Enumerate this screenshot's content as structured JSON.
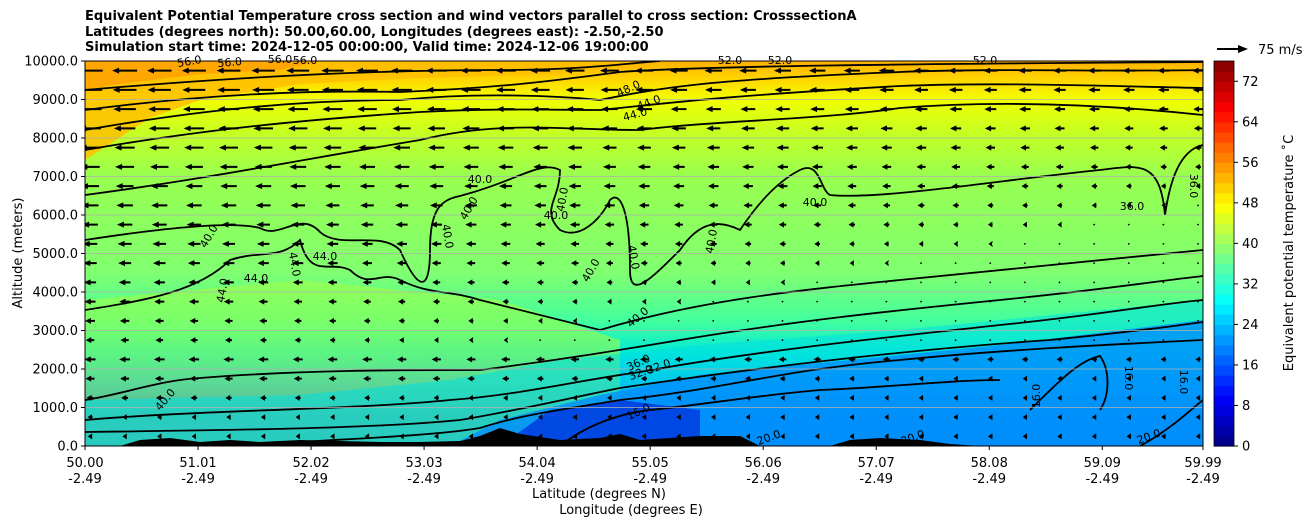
{
  "chart_data": {
    "type": "heatmap",
    "title_lines": [
      "Equivalent Potential Temperature cross section and wind vectors parallel to cross section: CrosssectionA",
      "Latitudes (degrees north): 50.00,60.00, Longitudes (degrees east): -2.50,-2.50",
      "Simulation start time: 2024-12-05 00:00:00, Valid time: 2024-12-06 19:00:00"
    ],
    "ylabel": "Altitude (meters)",
    "xlabel_lines": [
      "Latitude (degrees N)",
      "Longitude (degrees E)"
    ],
    "ylim": [
      0,
      10000
    ],
    "y_ticks": [
      "0.0",
      "1000.0",
      "2000.0",
      "3000.0",
      "4000.0",
      "5000.0",
      "6000.0",
      "7000.0",
      "8000.0",
      "9000.0",
      "10000.0"
    ],
    "x_ticks": [
      {
        "lat": "50.00",
        "lon": "-2.49"
      },
      {
        "lat": "51.01",
        "lon": "-2.49"
      },
      {
        "lat": "52.02",
        "lon": "-2.49"
      },
      {
        "lat": "53.03",
        "lon": "-2.49"
      },
      {
        "lat": "54.04",
        "lon": "-2.49"
      },
      {
        "lat": "55.05",
        "lon": "-2.49"
      },
      {
        "lat": "56.06",
        "lon": "-2.49"
      },
      {
        "lat": "57.07",
        "lon": "-2.49"
      },
      {
        "lat": "58.08",
        "lon": "-2.49"
      },
      {
        "lat": "59.09",
        "lon": "-2.49"
      },
      {
        "lat": "59.99",
        "lon": "-2.49"
      }
    ],
    "colorbar": {
      "label": "Equivalent potential temperature $^\\circ$C",
      "label_display": "Equivalent potential temperature ˚C",
      "ticks": [
        "0",
        "8",
        "16",
        "24",
        "32",
        "40",
        "48",
        "56",
        "64",
        "72"
      ],
      "range": [
        0,
        76
      ]
    },
    "quiver_key": "75 m/s",
    "contour_labels": [
      "56.0",
      "56.0",
      "56.0",
      "56.0",
      "48.0",
      "44.0",
      "44.0",
      "52.0",
      "52.0",
      "52.0",
      "40.0",
      "40.0",
      "40.0",
      "40.0",
      "40.0",
      "40.0",
      "40.0",
      "40.0",
      "40.0",
      "40.0",
      "40.0",
      "40.0",
      "44.0",
      "44.0",
      "44.0",
      "44.0",
      "36.0",
      "36.0",
      "36.0",
      "32.0",
      "32.0",
      "16.0",
      "16.0",
      "16.0",
      "16.0",
      "20.0",
      "20.0",
      "20.0"
    ],
    "grid": "horizontal",
    "legend": "none"
  }
}
